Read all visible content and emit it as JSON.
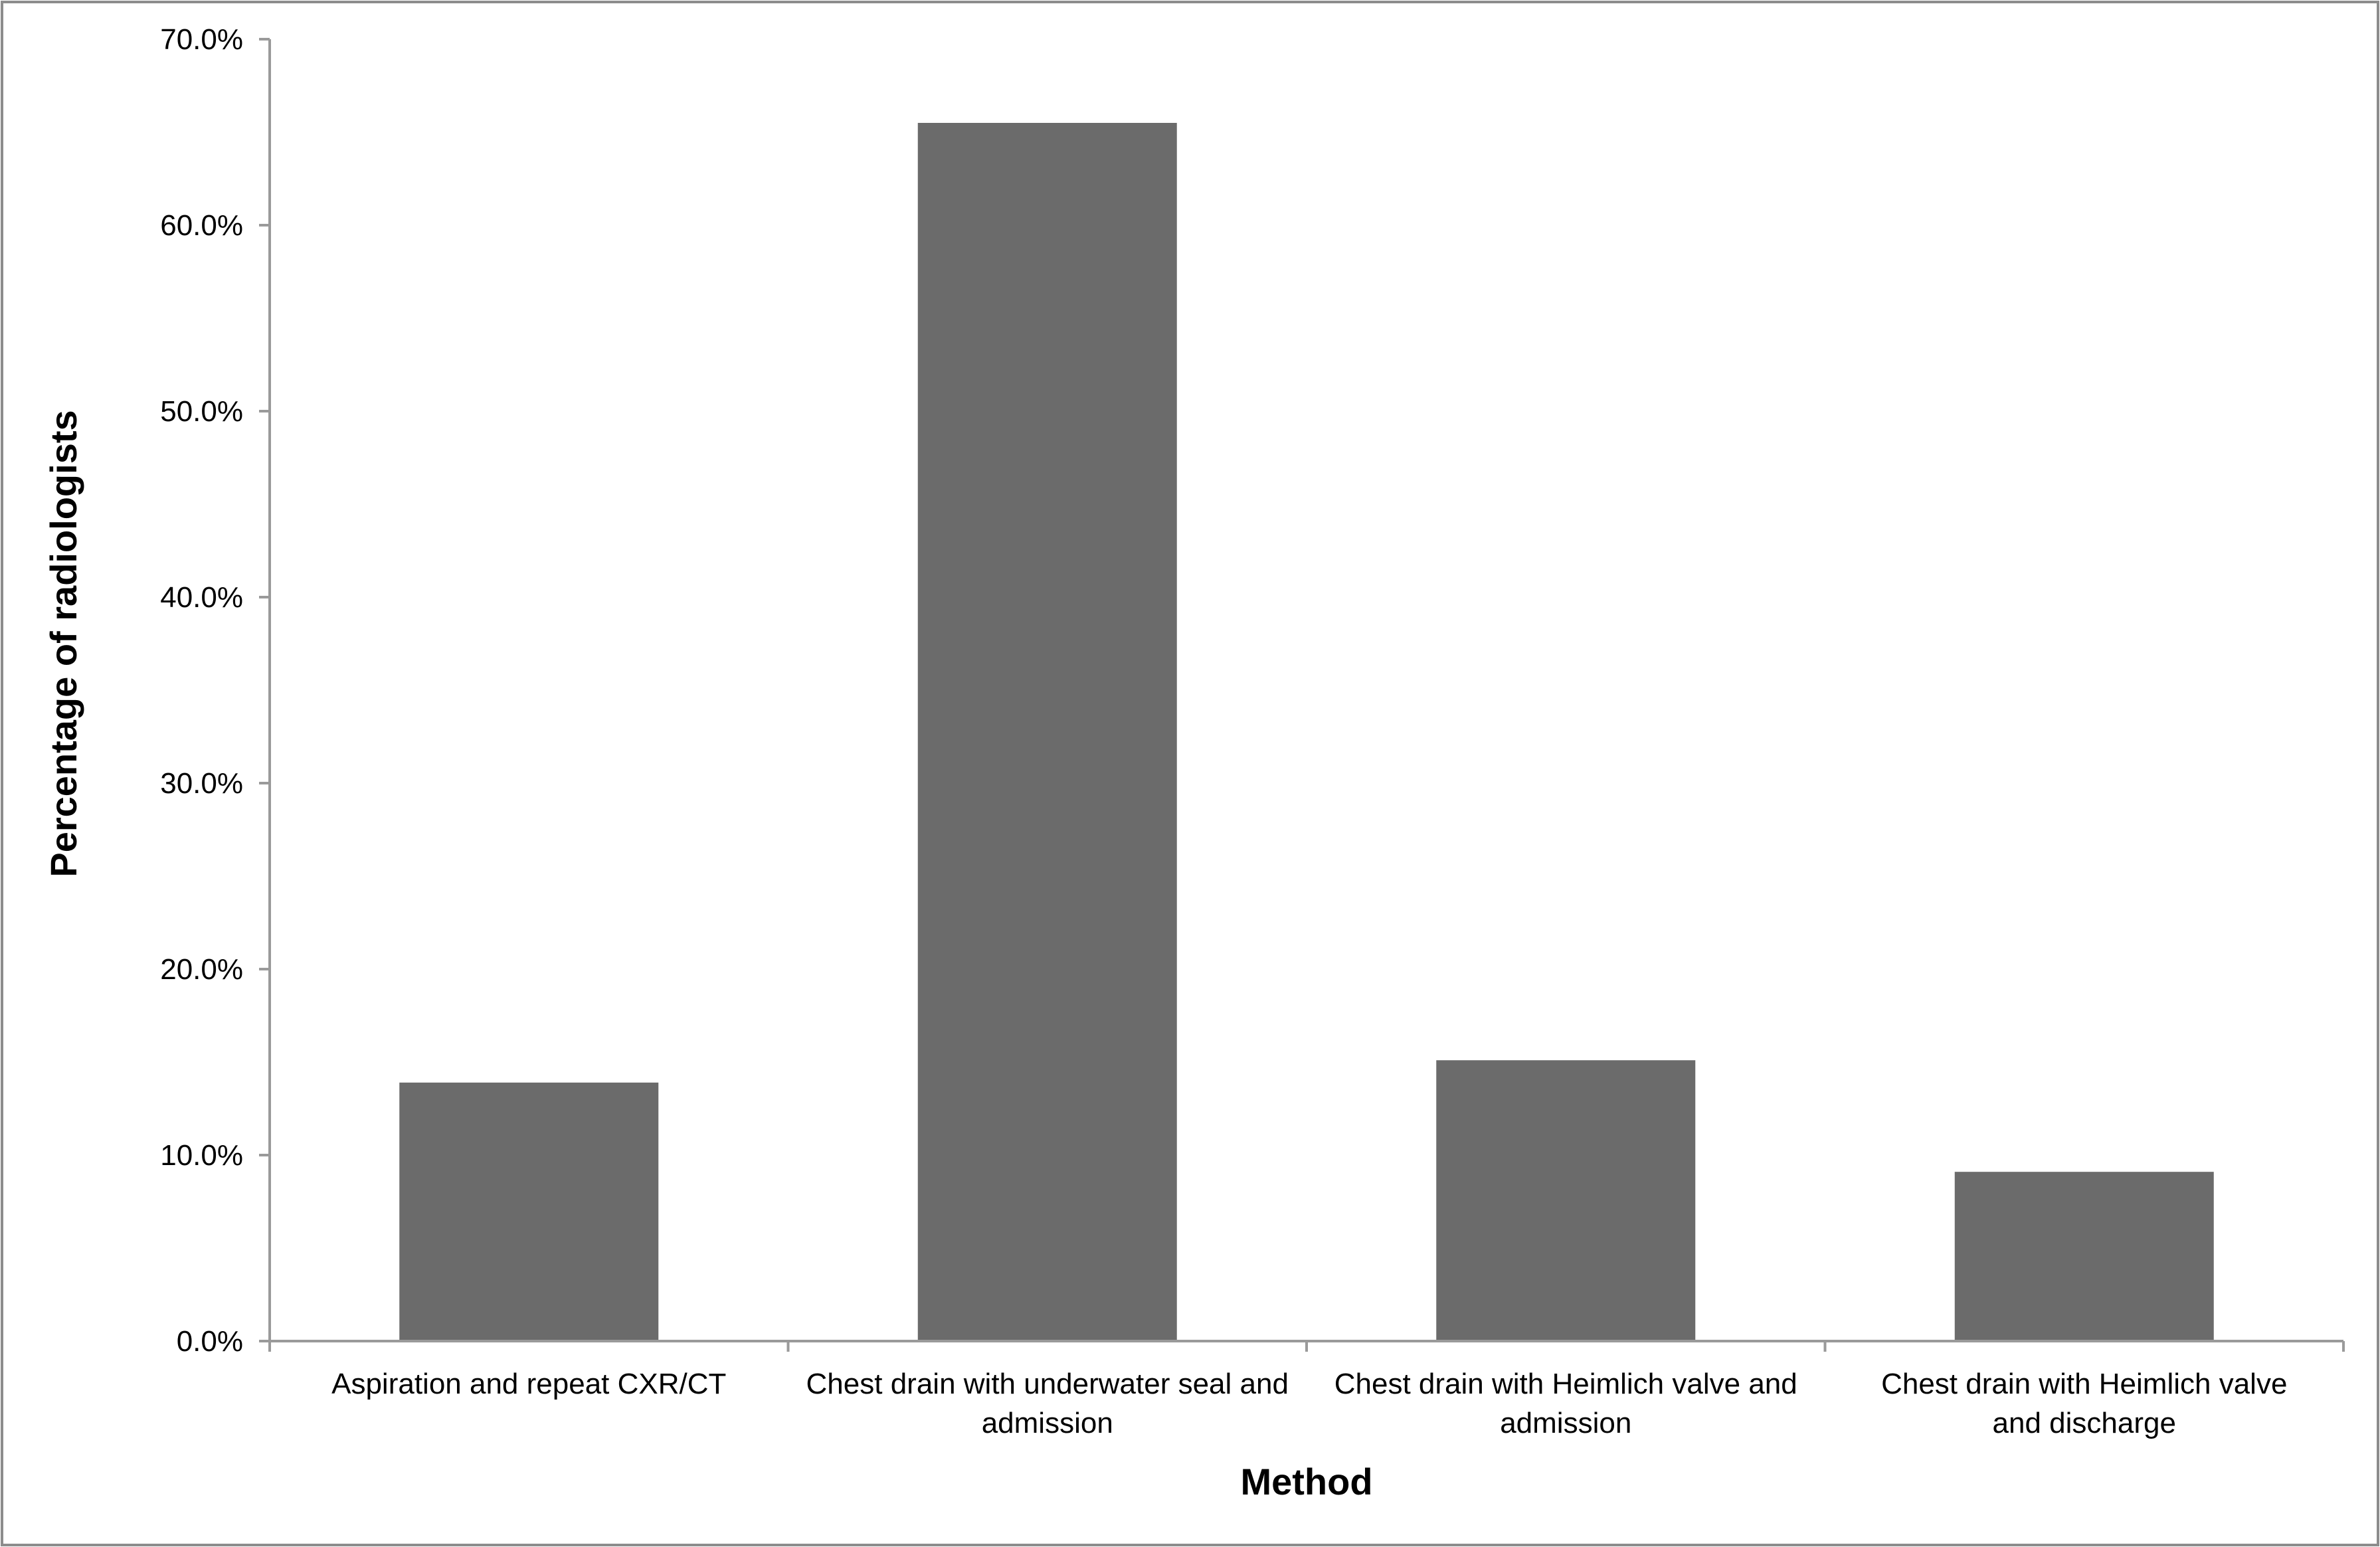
{
  "chart_data": {
    "type": "bar",
    "title": "",
    "xlabel": "Method",
    "ylabel": "Percentage of radiologists",
    "categories": [
      [
        "Aspiration and repeat CXR/CT"
      ],
      [
        "Chest drain with underwater seal and",
        "admission"
      ],
      [
        "Chest drain with Heimlich valve and",
        "admission"
      ],
      [
        "Chest drain with Heimlich valve",
        "and discharge"
      ]
    ],
    "values": [
      13.9,
      65.5,
      15.1,
      9.1
    ],
    "ylim": [
      0,
      70
    ],
    "yticks": [
      0,
      10,
      20,
      30,
      40,
      50,
      60,
      70
    ],
    "ytick_labels": [
      "0.0%",
      "10.0%",
      "20.0%",
      "30.0%",
      "40.0%",
      "50.0%",
      "60.0%",
      "70.0%"
    ],
    "grid": false,
    "legend": "none",
    "bar_color": "#6b6b6b",
    "axis_color": "#9a9a9a",
    "frame_color": "#8c8c8c"
  }
}
